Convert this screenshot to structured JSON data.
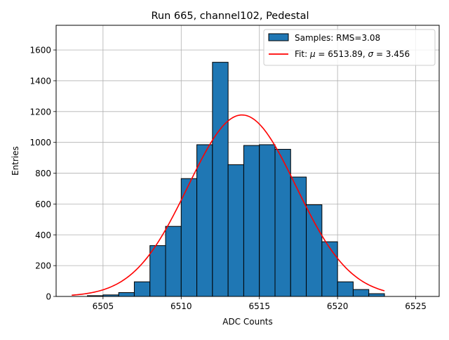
{
  "chart_data": {
    "type": "bar",
    "title": "Run 665, channel102, Pedestal",
    "xlabel": "ADC Counts",
    "ylabel": "Entries",
    "xlim": [
      6502.0,
      6526.5
    ],
    "ylim": [
      0,
      1760
    ],
    "xticks": [
      6505,
      6510,
      6515,
      6520,
      6525
    ],
    "yticks": [
      0,
      200,
      400,
      600,
      800,
      1000,
      1200,
      1400,
      1600
    ],
    "grid": true,
    "legend_position": "top-right",
    "histogram": {
      "name": "Samples: RMS=3.08",
      "color": "#1f77b4",
      "edgecolor": "#000000",
      "bins": [
        {
          "lo": 6504,
          "hi": 6505,
          "count": 5
        },
        {
          "lo": 6505,
          "hi": 6506,
          "count": 10
        },
        {
          "lo": 6506,
          "hi": 6507,
          "count": 25
        },
        {
          "lo": 6507,
          "hi": 6508,
          "count": 95
        },
        {
          "lo": 6508,
          "hi": 6509,
          "count": 330
        },
        {
          "lo": 6509,
          "hi": 6510,
          "count": 455
        },
        {
          "lo": 6510,
          "hi": 6511,
          "count": 765
        },
        {
          "lo": 6511,
          "hi": 6512,
          "count": 985
        },
        {
          "lo": 6512,
          "hi": 6513,
          "count": 1520
        },
        {
          "lo": 6513,
          "hi": 6514,
          "count": 855
        },
        {
          "lo": 6514,
          "hi": 6515,
          "count": 980
        },
        {
          "lo": 6515,
          "hi": 6516,
          "count": 985
        },
        {
          "lo": 6516,
          "hi": 6517,
          "count": 955
        },
        {
          "lo": 6517,
          "hi": 6518,
          "count": 775
        },
        {
          "lo": 6518,
          "hi": 6519,
          "count": 595
        },
        {
          "lo": 6519,
          "hi": 6520,
          "count": 355
        },
        {
          "lo": 6520,
          "hi": 6521,
          "count": 95
        },
        {
          "lo": 6521,
          "hi": 6522,
          "count": 45
        },
        {
          "lo": 6522,
          "hi": 6523,
          "count": 18
        }
      ]
    },
    "fit": {
      "name_prefix": "Fit: ",
      "name_mu": "μ",
      "name_sigma": "σ",
      "name_mid": " = 6513.89, ",
      "name_end": " = 3.456",
      "color": "#ff0000",
      "mu": 6513.89,
      "sigma": 3.456,
      "amplitude": 1178,
      "x_range": [
        6503,
        6523
      ]
    }
  }
}
